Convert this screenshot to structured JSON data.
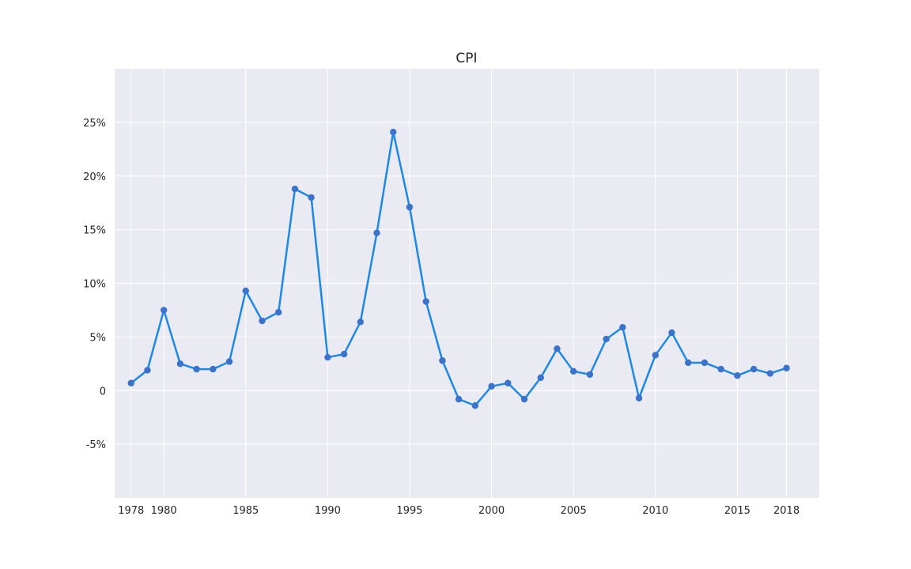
{
  "chart_data": {
    "type": "line",
    "title": "CPI",
    "xlabel": "",
    "ylabel": "",
    "xlim": [
      1977,
      2020
    ],
    "ylim": [
      -10,
      30
    ],
    "grid": true,
    "colors": {
      "background": "#eaeaf2",
      "grid": "#ffffff",
      "line": "#1e88e5",
      "marker": "#3a73c9"
    },
    "x_ticks": [
      1978,
      1980,
      1985,
      1990,
      1995,
      2000,
      2005,
      2010,
      2015,
      2018
    ],
    "x_tick_labels": [
      "1978",
      "1980",
      "1985",
      "1990",
      "1995",
      "2000",
      "2005",
      "2010",
      "2015",
      "2018"
    ],
    "y_ticks": [
      -5,
      0,
      5,
      10,
      15,
      20,
      25
    ],
    "y_tick_labels": [
      "-5%",
      "0",
      "5%",
      "10%",
      "15%",
      "20%",
      "25%"
    ],
    "series": [
      {
        "x": [
          1978,
          1979,
          1980,
          1981,
          1982,
          1983,
          1984,
          1985,
          1986,
          1987,
          1988,
          1989,
          1990,
          1991,
          1992,
          1993,
          1994,
          1995,
          1996,
          1997,
          1998,
          1999,
          2000,
          2001,
          2002,
          2003,
          2004,
          2005,
          2006,
          2007,
          2008,
          2009,
          2010,
          2011,
          2012,
          2013,
          2014,
          2015,
          2016,
          2017,
          2018
        ],
        "values": [
          0.7,
          1.9,
          7.5,
          2.5,
          2.0,
          2.0,
          2.7,
          9.3,
          6.5,
          7.3,
          18.8,
          18.0,
          3.1,
          3.4,
          6.4,
          14.7,
          24.1,
          17.1,
          8.3,
          2.8,
          -0.8,
          -1.4,
          0.4,
          0.7,
          -0.8,
          1.2,
          3.9,
          1.8,
          1.5,
          4.8,
          5.9,
          -0.7,
          3.3,
          5.4,
          2.6,
          2.6,
          2.0,
          1.4,
          2.0,
          1.6,
          2.1
        ]
      }
    ]
  }
}
